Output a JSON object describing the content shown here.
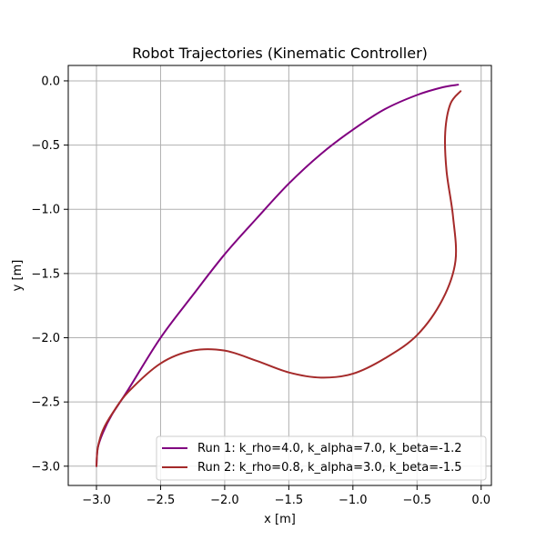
{
  "chart_data": {
    "type": "line",
    "title": "Robot Trajectories (Kinematic Controller)",
    "xlabel": "x [m]",
    "ylabel": "y [m]",
    "xlim": [
      -3.22,
      0.08
    ],
    "ylim": [
      -3.15,
      0.12
    ],
    "xticks": [
      -3.0,
      -2.5,
      -2.0,
      -1.5,
      -1.0,
      -0.5,
      0.0
    ],
    "xtick_labels": [
      "−3.0",
      "−2.5",
      "−2.0",
      "−1.5",
      "−1.0",
      "−0.5",
      "0.0"
    ],
    "yticks": [
      0.0,
      -0.5,
      -1.0,
      -1.5,
      -2.0,
      -2.5,
      -3.0
    ],
    "ytick_labels": [
      "0.0",
      "−0.5",
      "−1.0",
      "−1.5",
      "−2.0",
      "−2.5",
      "−3.0"
    ],
    "grid": true,
    "legend_position": "bottom-right",
    "series": [
      {
        "name": "Run 1: k_rho=4.0, k_alpha=7.0, k_beta=-1.2",
        "color": "#800080",
        "points": [
          [
            -3.0,
            -3.0
          ],
          [
            -2.99,
            -2.86
          ],
          [
            -2.95,
            -2.74
          ],
          [
            -2.88,
            -2.6
          ],
          [
            -2.75,
            -2.4
          ],
          [
            -2.5,
            -2.0
          ],
          [
            -2.25,
            -1.67
          ],
          [
            -2.0,
            -1.35
          ],
          [
            -1.75,
            -1.07
          ],
          [
            -1.5,
            -0.8
          ],
          [
            -1.25,
            -0.57
          ],
          [
            -1.0,
            -0.38
          ],
          [
            -0.75,
            -0.22
          ],
          [
            -0.5,
            -0.11
          ],
          [
            -0.3,
            -0.05
          ],
          [
            -0.18,
            -0.03
          ]
        ]
      },
      {
        "name": "Run 2: k_rho=0.8, k_alpha=3.0, k_beta=-1.5",
        "color": "#a52a2a",
        "points": [
          [
            -3.0,
            -3.0
          ],
          [
            -2.99,
            -2.86
          ],
          [
            -2.95,
            -2.72
          ],
          [
            -2.87,
            -2.58
          ],
          [
            -2.75,
            -2.42
          ],
          [
            -2.5,
            -2.2
          ],
          [
            -2.25,
            -2.1
          ],
          [
            -2.0,
            -2.1
          ],
          [
            -1.75,
            -2.18
          ],
          [
            -1.5,
            -2.27
          ],
          [
            -1.25,
            -2.31
          ],
          [
            -1.0,
            -2.28
          ],
          [
            -0.75,
            -2.16
          ],
          [
            -0.5,
            -1.98
          ],
          [
            -0.3,
            -1.7
          ],
          [
            -0.2,
            -1.4
          ],
          [
            -0.22,
            -1.05
          ],
          [
            -0.27,
            -0.7
          ],
          [
            -0.28,
            -0.4
          ],
          [
            -0.24,
            -0.18
          ],
          [
            -0.16,
            -0.08
          ]
        ]
      }
    ]
  }
}
